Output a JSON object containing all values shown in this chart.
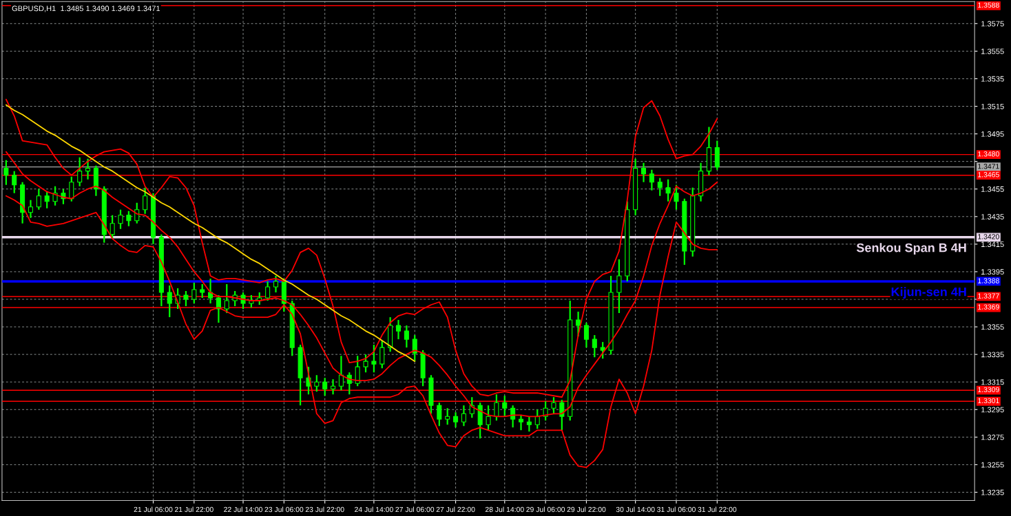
{
  "chart_data": {
    "type": "candlestick",
    "title": "GBPUSD,H1  1.3485 1.3490 1.3469 1.3471",
    "color": "#00ff00",
    "categories": [
      null,
      null,
      null,
      null,
      null,
      null,
      null,
      null,
      null,
      null,
      null,
      null,
      null,
      null,
      null,
      null,
      null,
      null,
      "21 Jul 06:00",
      null,
      null,
      null,
      null,
      "21 Jul 22:00",
      null,
      null,
      null,
      null,
      null,
      "22 Jul 14:00",
      null,
      null,
      null,
      null,
      "23 Jul 06:00",
      null,
      null,
      null,
      null,
      "23 Jul 22:00",
      null,
      null,
      null,
      null,
      null,
      "24 Jul 14:00",
      null,
      null,
      null,
      null,
      "27 Jul 06:00",
      null,
      null,
      null,
      null,
      "27 Jul 22:00",
      null,
      null,
      null,
      null,
      null,
      "28 Jul 14:00",
      null,
      null,
      null,
      null,
      "29 Jul 06:00",
      null,
      null,
      null,
      null,
      "29 Jul 22:00",
      null,
      null,
      null,
      null,
      null,
      "30 Jul 14:00",
      null,
      null,
      null,
      null,
      "31 Jul 06:00",
      null,
      null,
      null,
      null,
      "31 Jul 22:00",
      null,
      null,
      null,
      null,
      null,
      null,
      null,
      null,
      null,
      null,
      null,
      null,
      null,
      null,
      null,
      null,
      null,
      null,
      null,
      null,
      null,
      null,
      null,
      null,
      null,
      null,
      null,
      null,
      null,
      null,
      null
    ],
    "ohlc": [
      [
        1.347,
        1.3476,
        1.3458,
        1.3465
      ],
      [
        1.3465,
        1.3468,
        1.3452,
        1.3458
      ],
      [
        1.3458,
        1.346,
        1.343,
        1.3438
      ],
      [
        1.3438,
        1.3447,
        1.3434,
        1.3442
      ],
      [
        1.3442,
        1.3455,
        1.344,
        1.345
      ],
      [
        1.345,
        1.3453,
        1.3441,
        1.3446
      ],
      [
        1.3446,
        1.3457,
        1.3443,
        1.3452
      ],
      [
        1.3452,
        1.3455,
        1.3444,
        1.3448
      ],
      [
        1.3448,
        1.3464,
        1.3446,
        1.346
      ],
      [
        1.346,
        1.3478,
        1.3457,
        1.3468
      ],
      [
        1.3468,
        1.3477,
        1.3462,
        1.347
      ],
      [
        1.347,
        1.3472,
        1.345,
        1.3455
      ],
      [
        1.3455,
        1.3457,
        1.3416,
        1.3422
      ],
      [
        1.3422,
        1.3436,
        1.3419,
        1.343
      ],
      [
        1.343,
        1.344,
        1.3426,
        1.3436
      ],
      [
        1.3436,
        1.3439,
        1.3428,
        1.3432
      ],
      [
        1.3432,
        1.3445,
        1.343,
        1.344
      ],
      [
        1.344,
        1.3456,
        1.3437,
        1.345
      ],
      [
        1.345,
        1.3452,
        1.3415,
        1.342
      ],
      [
        1.342,
        1.3422,
        1.337,
        1.338
      ],
      [
        1.338,
        1.3385,
        1.3362,
        1.3372
      ],
      [
        1.3372,
        1.3383,
        1.3368,
        1.3378
      ],
      [
        1.3378,
        1.3381,
        1.337,
        1.3375
      ],
      [
        1.3375,
        1.3387,
        1.3372,
        1.3382
      ],
      [
        1.3382,
        1.3386,
        1.3376,
        1.338
      ],
      [
        1.338,
        1.339,
        1.3372,
        1.3376
      ],
      [
        1.3376,
        1.3378,
        1.3358,
        1.3368
      ],
      [
        1.3368,
        1.3386,
        1.3365,
        1.3374
      ],
      [
        1.3374,
        1.3381,
        1.337,
        1.3378
      ],
      [
        1.3378,
        1.338,
        1.3368,
        1.3372
      ],
      [
        1.3372,
        1.3378,
        1.3369,
        1.3374
      ],
      [
        1.3374,
        1.338,
        1.3371,
        1.3376
      ],
      [
        1.3376,
        1.3388,
        1.3374,
        1.3384
      ],
      [
        1.3384,
        1.3392,
        1.338,
        1.3388
      ],
      [
        1.3388,
        1.339,
        1.3366,
        1.3372
      ],
      [
        1.3372,
        1.3374,
        1.3334,
        1.334
      ],
      [
        1.334,
        1.3342,
        1.3298,
        1.3318
      ],
      [
        1.3318,
        1.3326,
        1.3306,
        1.3312
      ],
      [
        1.3312,
        1.332,
        1.3308,
        1.3315
      ],
      [
        1.3315,
        1.3318,
        1.3305,
        1.331
      ],
      [
        1.331,
        1.3317,
        1.3306,
        1.3312
      ],
      [
        1.3312,
        1.3334,
        1.3309,
        1.332
      ],
      [
        1.332,
        1.3322,
        1.3306,
        1.3314
      ],
      [
        1.3314,
        1.3334,
        1.3312,
        1.3326
      ],
      [
        1.3326,
        1.3335,
        1.3322,
        1.333
      ],
      [
        1.333,
        1.3342,
        1.3322,
        1.3328
      ],
      [
        1.3328,
        1.3345,
        1.3325,
        1.334
      ],
      [
        1.334,
        1.3362,
        1.3337,
        1.3356
      ],
      [
        1.3356,
        1.336,
        1.3346,
        1.3352
      ],
      [
        1.3352,
        1.3356,
        1.334,
        1.3346
      ],
      [
        1.3346,
        1.3349,
        1.333,
        1.3336
      ],
      [
        1.3336,
        1.3338,
        1.3312,
        1.3318
      ],
      [
        1.3318,
        1.332,
        1.3292,
        1.3298
      ],
      [
        1.3298,
        1.33,
        1.3283,
        1.3288
      ],
      [
        1.3288,
        1.3296,
        1.3284,
        1.329
      ],
      [
        1.329,
        1.3293,
        1.3282,
        1.3286
      ],
      [
        1.3286,
        1.3298,
        1.3283,
        1.3292
      ],
      [
        1.3292,
        1.3304,
        1.3289,
        1.3298
      ],
      [
        1.3298,
        1.33,
        1.3274,
        1.3284
      ],
      [
        1.3284,
        1.3298,
        1.328,
        1.329
      ],
      [
        1.329,
        1.3306,
        1.3287,
        1.33
      ],
      [
        1.33,
        1.3305,
        1.329,
        1.3296
      ],
      [
        1.3296,
        1.3298,
        1.3282,
        1.3288
      ],
      [
        1.3288,
        1.3291,
        1.328,
        1.3286
      ],
      [
        1.3286,
        1.329,
        1.3279,
        1.3284
      ],
      [
        1.3284,
        1.3295,
        1.3281,
        1.329
      ],
      [
        1.329,
        1.3301,
        1.3287,
        1.3296
      ],
      [
        1.3296,
        1.3304,
        1.3292,
        1.33
      ],
      [
        1.33,
        1.3302,
        1.328,
        1.329
      ],
      [
        1.329,
        1.3374,
        1.3287,
        1.336
      ],
      [
        1.336,
        1.3366,
        1.3348,
        1.3356
      ],
      [
        1.3356,
        1.3358,
        1.334,
        1.3346
      ],
      [
        1.3346,
        1.3349,
        1.3333,
        1.334
      ],
      [
        1.334,
        1.3344,
        1.3332,
        1.3338
      ],
      [
        1.3338,
        1.3392,
        1.3335,
        1.338
      ],
      [
        1.338,
        1.3404,
        1.3365,
        1.3392
      ],
      [
        1.3392,
        1.3446,
        1.3388,
        1.344
      ],
      [
        1.344,
        1.3477,
        1.3436,
        1.347
      ],
      [
        1.347,
        1.3474,
        1.346,
        1.3466
      ],
      [
        1.3466,
        1.3469,
        1.3454,
        1.346
      ],
      [
        1.346,
        1.3463,
        1.345,
        1.3456
      ],
      [
        1.3456,
        1.3462,
        1.3446,
        1.3452
      ],
      [
        1.3452,
        1.3458,
        1.344,
        1.3446
      ],
      [
        1.3446,
        1.3448,
        1.34,
        1.341
      ],
      [
        1.341,
        1.3456,
        1.3406,
        1.345
      ],
      [
        1.345,
        1.3474,
        1.3446,
        1.3468
      ],
      [
        1.3468,
        1.35,
        1.3465,
        1.3485
      ],
      [
        1.3485,
        1.349,
        1.3469,
        1.3471
      ],
      null,
      null,
      null,
      null,
      null,
      null,
      null,
      null,
      null,
      null,
      null,
      null,
      null,
      null,
      null,
      null,
      null,
      null,
      null,
      null,
      null,
      null,
      null,
      null,
      null,
      null,
      null,
      null,
      null,
      null,
      null
    ],
    "series": [
      {
        "type": "line",
        "color": "#ff0000",
        "values": [
          1.352,
          1.3508,
          1.349,
          1.3489,
          1.3488,
          1.3487,
          1.3478,
          1.347,
          1.3465,
          1.347,
          1.3475,
          1.3479,
          1.3482,
          1.3483,
          1.3484,
          1.3481,
          1.3473,
          1.3457,
          1.3449,
          1.3456,
          1.3464,
          1.3463,
          1.3456,
          1.3443,
          1.3416,
          1.3392,
          1.3389,
          1.339,
          1.339,
          1.3389,
          1.3388,
          1.3387,
          1.3389,
          1.339,
          1.3388,
          1.3396,
          1.3409,
          1.3412,
          1.3407,
          1.339,
          1.337,
          1.3344,
          1.3329,
          1.333,
          1.3332,
          1.3337,
          1.3349,
          1.3358,
          1.3363,
          1.3365,
          1.3364,
          1.3368,
          1.3371,
          1.3373,
          1.3362,
          1.3338,
          1.3321,
          1.3312,
          1.3306,
          1.3305,
          1.3307,
          1.3308,
          1.3307,
          1.3307,
          1.3307,
          1.3307,
          1.3306,
          1.3305,
          1.3304,
          1.3316,
          1.3349,
          1.3375,
          1.3388,
          1.3393,
          1.3395,
          1.341,
          1.3447,
          1.3493,
          1.3514,
          1.3519,
          1.3508,
          1.3491,
          1.3477,
          1.3479,
          1.348,
          1.3486,
          1.3495,
          1.3506,
          null,
          null,
          null,
          null,
          null,
          null,
          null,
          null,
          null,
          null,
          null,
          null,
          null,
          null,
          null,
          null,
          null,
          null,
          null,
          null,
          null,
          null,
          null,
          null,
          null,
          null,
          null,
          null,
          null,
          null,
          null
        ]
      },
      {
        "type": "line",
        "color": "#ff0000",
        "values": [
          1.3482,
          1.3474,
          1.3466,
          1.3461,
          1.3457,
          1.3453,
          1.3451,
          1.3449,
          1.3448,
          1.3452,
          1.3455,
          1.3457,
          1.3454,
          1.3449,
          1.3445,
          1.3441,
          1.3437,
          1.3436,
          1.3431,
          1.3425,
          1.342,
          1.3413,
          1.3404,
          1.3395,
          1.3388,
          1.338,
          1.3377,
          1.3377,
          1.3376,
          1.3375,
          1.3374,
          1.3374,
          1.3375,
          1.3376,
          1.3374,
          1.3371,
          1.3364,
          1.3356,
          1.3347,
          1.3336,
          1.3325,
          1.332,
          1.3317,
          1.3316,
          1.3316,
          1.3317,
          1.3321,
          1.3327,
          1.3332,
          1.3335,
          1.3338,
          1.3336,
          1.3333,
          1.3327,
          1.332,
          1.3312,
          1.3305,
          1.3297,
          1.3294,
          1.3291,
          1.329,
          1.329,
          1.3291,
          1.3291,
          1.329,
          1.329,
          1.3291,
          1.3292,
          1.3292,
          1.3297,
          1.3311,
          1.332,
          1.3328,
          1.3336,
          1.3344,
          1.3353,
          1.3364,
          1.3374,
          1.3392,
          1.3414,
          1.343,
          1.3443,
          1.3457,
          1.3453,
          1.345,
          1.3452,
          1.3455,
          1.346,
          null,
          null,
          null,
          null,
          null,
          null,
          null,
          null,
          null,
          null,
          null,
          null,
          null,
          null,
          null,
          null,
          null,
          null,
          null,
          null,
          null,
          null,
          null,
          null,
          null,
          null,
          null,
          null,
          null,
          null,
          null
        ]
      },
      {
        "type": "line",
        "color": "#ff0000",
        "values": [
          1.345,
          1.3447,
          1.3443,
          1.3431,
          1.343,
          1.3428,
          1.3429,
          1.343,
          1.3432,
          1.3434,
          1.3436,
          1.3438,
          1.3429,
          1.3419,
          1.3414,
          1.341,
          1.3409,
          1.3414,
          1.3413,
          1.3402,
          1.3388,
          1.3373,
          1.3357,
          1.3346,
          1.3352,
          1.3367,
          1.3369,
          1.3366,
          1.3363,
          1.3362,
          1.3362,
          1.3362,
          1.3362,
          1.3364,
          1.3371,
          1.3364,
          1.335,
          1.3321,
          1.3292,
          1.3285,
          1.3287,
          1.33,
          1.3303,
          1.3304,
          1.3304,
          1.3304,
          1.3304,
          1.3304,
          1.3306,
          1.3311,
          1.3312,
          1.3305,
          1.3291,
          1.3278,
          1.3269,
          1.3268,
          1.3276,
          1.328,
          1.3282,
          1.328,
          1.3278,
          1.3276,
          1.3276,
          1.3276,
          1.3276,
          1.328,
          1.328,
          1.328,
          1.328,
          1.3262,
          1.3254,
          1.3253,
          1.3258,
          1.3266,
          1.3297,
          1.3317,
          1.3307,
          1.3292,
          1.3312,
          1.3338,
          1.3378,
          1.3406,
          1.3431,
          1.3423,
          1.3415,
          1.3412,
          1.3411,
          1.3411,
          null,
          null,
          null,
          null,
          null,
          null,
          null,
          null,
          null,
          null,
          null,
          null,
          null,
          null,
          null,
          null,
          null,
          null,
          null,
          null,
          null,
          null,
          null,
          null,
          null,
          null,
          null,
          null,
          null,
          null,
          null
        ]
      },
      {
        "type": "line",
        "color": "#ffd700",
        "values": [
          1.3516,
          1.3512,
          1.3509,
          1.3505,
          1.3501,
          1.3497,
          1.3494,
          1.349,
          1.3486,
          1.3483,
          1.3479,
          1.3475,
          1.3471,
          1.3468,
          1.3464,
          1.346,
          1.3456,
          1.3453,
          1.3449,
          1.3445,
          1.3442,
          1.3438,
          1.3434,
          1.343,
          1.3427,
          1.3423,
          1.3419,
          1.3416,
          1.3412,
          1.3408,
          1.3404,
          1.3401,
          1.3397,
          1.3393,
          1.3389,
          1.3386,
          1.3382,
          1.3378,
          1.3375,
          1.3371,
          1.3367,
          1.3363,
          1.336,
          1.3356,
          1.3352,
          1.3349,
          1.3345,
          1.3341,
          1.3337,
          1.3334,
          1.333,
          null,
          null,
          null,
          null,
          null,
          null,
          null,
          null,
          null,
          null,
          null,
          null,
          null,
          null,
          null,
          null,
          null,
          null,
          null,
          null,
          null,
          null,
          null,
          null,
          null,
          null,
          null,
          null,
          null,
          null,
          null,
          null,
          null,
          null,
          null,
          null,
          null,
          null,
          null,
          null,
          null,
          null,
          null,
          null,
          null,
          null,
          null,
          null,
          null,
          null,
          null,
          null,
          null,
          null,
          null,
          null,
          null,
          null,
          null,
          null,
          null,
          null,
          null,
          null,
          null,
          null,
          null,
          null
        ]
      }
    ],
    "ref_lines": [
      {
        "axis": "y",
        "value": 1.3588,
        "label": "1.3588",
        "color": "#ff0000"
      },
      {
        "axis": "y",
        "value": 1.348,
        "label": "1.3480",
        "color": "#ff0000"
      },
      {
        "axis": "y",
        "value": 1.3471,
        "label": "1.3471",
        "color": "#a8a8a8"
      },
      {
        "axis": "y",
        "value": 1.3465,
        "label": "1.3465",
        "color": "#ff0000"
      },
      {
        "axis": "y",
        "value": 1.342,
        "label": "1.3420",
        "color": "#e8d8ec"
      },
      {
        "axis": "y",
        "value": 1.3388,
        "label": "1.3388",
        "color": "#0000ff"
      },
      {
        "axis": "y",
        "value": 1.3377,
        "label": "1.3377",
        "color": "#ff0000"
      },
      {
        "axis": "y",
        "value": 1.3369,
        "label": "1.3369",
        "color": "#ff0000"
      },
      {
        "axis": "y",
        "value": 1.3309,
        "label": "1.3309",
        "color": "#ff0000"
      },
      {
        "axis": "y",
        "value": 1.3301,
        "label": "1.3301",
        "color": "#ff0000"
      }
    ],
    "annotations": [
      {
        "text": "Senkou Span B 4H",
        "y": 1.342
      },
      {
        "text": "Kijun-sen 4H",
        "y": 1.3388
      }
    ],
    "ylim": [
      1.3229,
      1.3591
    ],
    "yticks": [
      {
        "value": 1.3235,
        "label": "1.3235"
      },
      {
        "value": 1.3255,
        "label": "1.3255"
      },
      {
        "value": 1.3275,
        "label": "1.3275"
      },
      {
        "value": 1.3295,
        "label": "1.3295"
      },
      {
        "value": 1.3315,
        "label": "1.3315"
      },
      {
        "value": 1.3335,
        "label": "1.3335"
      },
      {
        "value": 1.3355,
        "label": "1.3355"
      },
      {
        "value": 1.3375,
        "label": null
      },
      {
        "value": 1.3395,
        "label": "1.3395"
      },
      {
        "value": 1.3415,
        "label": "1.3415"
      },
      {
        "value": 1.3435,
        "label": "1.3435"
      },
      {
        "value": 1.3455,
        "label": "1.3455"
      },
      {
        "value": 1.3475,
        "label": null
      },
      {
        "value": 1.3495,
        "label": "1.3495"
      },
      {
        "value": 1.3515,
        "label": "1.3515"
      },
      {
        "value": 1.3535,
        "label": "1.3535"
      },
      {
        "value": 1.3555,
        "label": "1.3555"
      },
      {
        "value": 1.3575,
        "label": "1.3575"
      }
    ],
    "grid": true
  }
}
